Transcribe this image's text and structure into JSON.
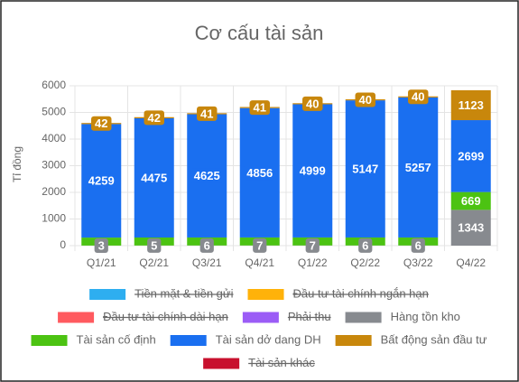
{
  "chart_data": {
    "type": "stacked_bar",
    "title": "Cơ cấu tài sản",
    "y_label": "Tỉ đồng",
    "categories": [
      "Q1/21",
      "Q2/21",
      "Q3/21",
      "Q4/21",
      "Q1/22",
      "Q2/22",
      "Q3/22",
      "Q4/22"
    ],
    "ylim": [
      0,
      6000
    ],
    "yticks": [
      0,
      1000,
      2000,
      3000,
      4000,
      5000,
      6000
    ],
    "grid": true,
    "series": [
      {
        "name": "Tiền mặt & tiền gửi",
        "color": "#2eaef0",
        "hidden": true,
        "values": [
          null,
          null,
          null,
          null,
          null,
          null,
          null,
          null
        ]
      },
      {
        "name": "Đầu tư tài chính ngắn hạn",
        "color": "#ffb20a",
        "hidden": true,
        "values": [
          null,
          null,
          null,
          null,
          null,
          null,
          null,
          null
        ]
      },
      {
        "name": "Đầu tư tài chính dài hạn",
        "color": "#ff5a5f",
        "hidden": true,
        "values": [
          null,
          null,
          null,
          null,
          null,
          null,
          null,
          null
        ]
      },
      {
        "name": "Phải thu",
        "color": "#9b5cf6",
        "hidden": true,
        "values": [
          null,
          null,
          null,
          null,
          null,
          null,
          null,
          null
        ]
      },
      {
        "name": "Hàng tồn kho",
        "color": "#878a8f",
        "values": [
          3,
          5,
          6,
          7,
          7,
          6,
          6,
          1343
        ]
      },
      {
        "name": "Tài sản cố định",
        "color": "#4cc312",
        "values": [
          300,
          300,
          300,
          300,
          300,
          300,
          300,
          669
        ],
        "value_labels": [
          null,
          null,
          null,
          null,
          null,
          null,
          null,
          "669"
        ]
      },
      {
        "name": "Tài sản dở dang DH",
        "color": "#1a6ff0",
        "values": [
          4259,
          4475,
          4625,
          4856,
          4999,
          5147,
          5257,
          2699
        ]
      },
      {
        "name": "Bất động sản đầu tư",
        "color": "#c8870c",
        "values": [
          42,
          42,
          41,
          41,
          40,
          40,
          40,
          1123
        ]
      },
      {
        "name": "Tài sản khác",
        "color": "#c8102e",
        "hidden": true,
        "values": [
          null,
          null,
          null,
          null,
          null,
          null,
          null,
          null
        ]
      }
    ]
  }
}
